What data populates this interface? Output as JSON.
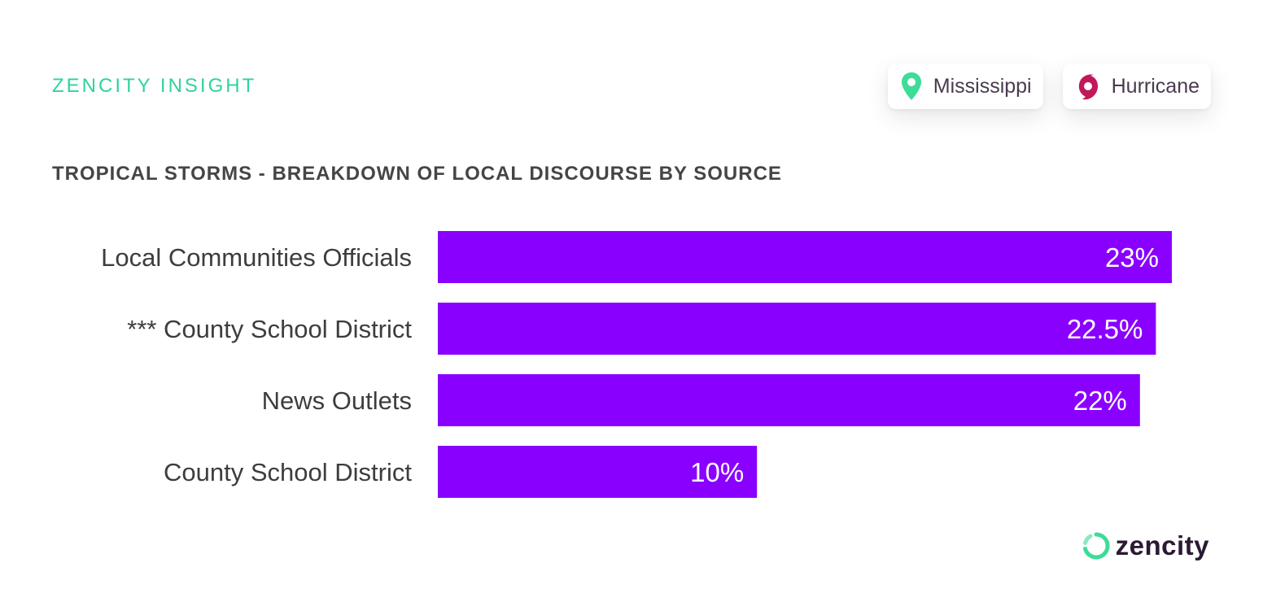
{
  "header": {
    "insight_label": "ZENCITY INSIGHT",
    "tags": [
      {
        "label": "Mississippi",
        "icon": "location-pin-icon",
        "color": "#3ddc97"
      },
      {
        "label": "Hurricane",
        "icon": "hurricane-icon",
        "color": "#c2185b"
      }
    ]
  },
  "chart_data": {
    "type": "bar",
    "orientation": "horizontal",
    "title": "TROPICAL STORMS - BREAKDOWN OF LOCAL DISCOURSE BY SOURCE",
    "categories": [
      "Local Communities Officials",
      "*** County School District",
      "News Outlets",
      "County School District"
    ],
    "values": [
      23,
      22.5,
      22,
      10
    ],
    "value_labels": [
      "23%",
      "22.5%",
      "22%",
      "10%"
    ],
    "unit": "%",
    "bar_color": "#8a00ff",
    "label_color": "#ffffff",
    "category_color": "#3d3d3d",
    "grid": false,
    "legend": "none"
  },
  "footer": {
    "brand_name": "zencity",
    "brand_colors": [
      "#3ddc97",
      "#2b1a33"
    ]
  }
}
